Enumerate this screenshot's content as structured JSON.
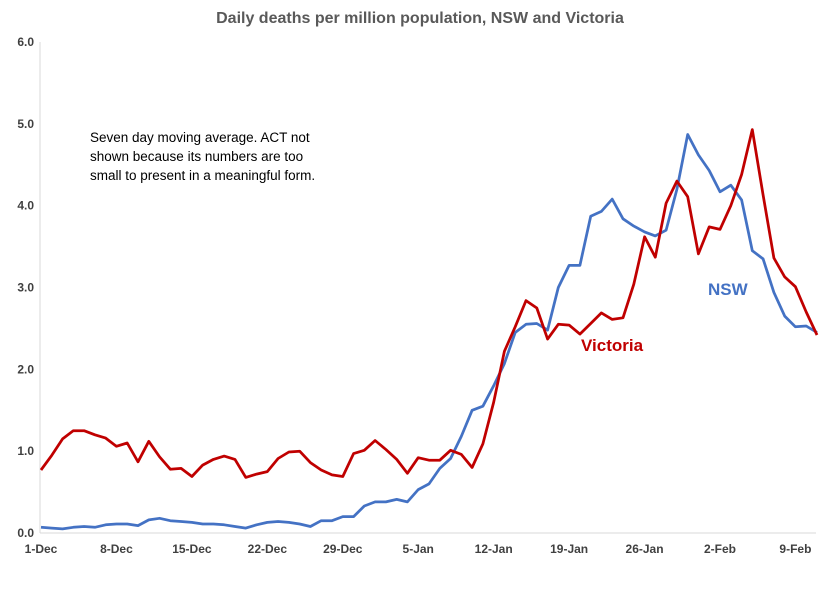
{
  "chart_data": {
    "type": "line",
    "title": "Daily deaths per million population, NSW and Victoria",
    "annotation": "Seven day moving average. ACT not shown because its numbers are too small to present in a meaningful form.",
    "xlabel": "",
    "ylabel": "",
    "ylim": [
      0,
      6
    ],
    "yticks": [
      "0.0",
      "1.0",
      "2.0",
      "3.0",
      "4.0",
      "5.0",
      "6.0"
    ],
    "xticks": [
      "1-Dec",
      "8-Dec",
      "15-Dec",
      "22-Dec",
      "29-Dec",
      "5-Jan",
      "12-Jan",
      "19-Jan",
      "26-Jan",
      "2-Feb",
      "9-Feb"
    ],
    "x": [
      "1-Dec",
      "2-Dec",
      "3-Dec",
      "4-Dec",
      "5-Dec",
      "6-Dec",
      "7-Dec",
      "8-Dec",
      "9-Dec",
      "10-Dec",
      "11-Dec",
      "12-Dec",
      "13-Dec",
      "14-Dec",
      "15-Dec",
      "16-Dec",
      "17-Dec",
      "18-Dec",
      "19-Dec",
      "20-Dec",
      "21-Dec",
      "22-Dec",
      "23-Dec",
      "24-Dec",
      "25-Dec",
      "26-Dec",
      "27-Dec",
      "28-Dec",
      "29-Dec",
      "30-Dec",
      "31-Dec",
      "1-Jan",
      "2-Jan",
      "3-Jan",
      "4-Jan",
      "5-Jan",
      "6-Jan",
      "7-Jan",
      "8-Jan",
      "9-Jan",
      "10-Jan",
      "11-Jan",
      "12-Jan",
      "13-Jan",
      "14-Jan",
      "15-Jan",
      "16-Jan",
      "17-Jan",
      "18-Jan",
      "19-Jan",
      "20-Jan",
      "21-Jan",
      "22-Jan",
      "23-Jan",
      "24-Jan",
      "25-Jan",
      "26-Jan",
      "27-Jan",
      "28-Jan",
      "29-Jan",
      "30-Jan",
      "31-Jan",
      "1-Feb",
      "2-Feb",
      "3-Feb",
      "4-Feb",
      "5-Feb",
      "6-Feb",
      "7-Feb",
      "8-Feb",
      "9-Feb",
      "10-Feb",
      "11-Feb"
    ],
    "series": [
      {
        "name": "NSW",
        "color": "#4472C4",
        "values": [
          0.07,
          0.06,
          0.05,
          0.07,
          0.08,
          0.07,
          0.1,
          0.11,
          0.11,
          0.09,
          0.16,
          0.18,
          0.15,
          0.14,
          0.13,
          0.11,
          0.11,
          0.1,
          0.08,
          0.06,
          0.1,
          0.13,
          0.14,
          0.13,
          0.11,
          0.08,
          0.15,
          0.15,
          0.2,
          0.2,
          0.33,
          0.38,
          0.38,
          0.41,
          0.38,
          0.53,
          0.6,
          0.79,
          0.91,
          1.18,
          1.5,
          1.55,
          1.8,
          2.07,
          2.45,
          2.55,
          2.56,
          2.48,
          3.0,
          3.27,
          3.27,
          3.87,
          3.93,
          4.08,
          3.84,
          3.75,
          3.68,
          3.63,
          3.7,
          4.2,
          4.87,
          4.62,
          4.43,
          4.17,
          4.25,
          4.07,
          3.45,
          3.35,
          2.94,
          2.65,
          2.52,
          2.53,
          2.45
        ]
      },
      {
        "name": "Victoria",
        "color": "#C00000",
        "values": [
          0.77,
          0.95,
          1.15,
          1.25,
          1.25,
          1.2,
          1.16,
          1.06,
          1.1,
          0.87,
          1.12,
          0.93,
          0.78,
          0.79,
          0.69,
          0.83,
          0.9,
          0.94,
          0.9,
          0.68,
          0.72,
          0.75,
          0.91,
          0.99,
          1.0,
          0.86,
          0.77,
          0.71,
          0.69,
          0.97,
          1.01,
          1.13,
          1.02,
          0.9,
          0.73,
          0.92,
          0.89,
          0.89,
          1.01,
          0.96,
          0.8,
          1.09,
          1.6,
          2.22,
          2.52,
          2.84,
          2.75,
          2.37,
          2.55,
          2.54,
          2.43,
          2.56,
          2.69,
          2.61,
          2.63,
          3.04,
          3.62,
          3.37,
          4.03,
          4.3,
          4.11,
          3.41,
          3.74,
          3.71,
          4.0,
          4.38,
          4.93,
          4.13,
          3.36,
          3.13,
          3.01,
          2.7,
          2.42
        ]
      }
    ]
  }
}
